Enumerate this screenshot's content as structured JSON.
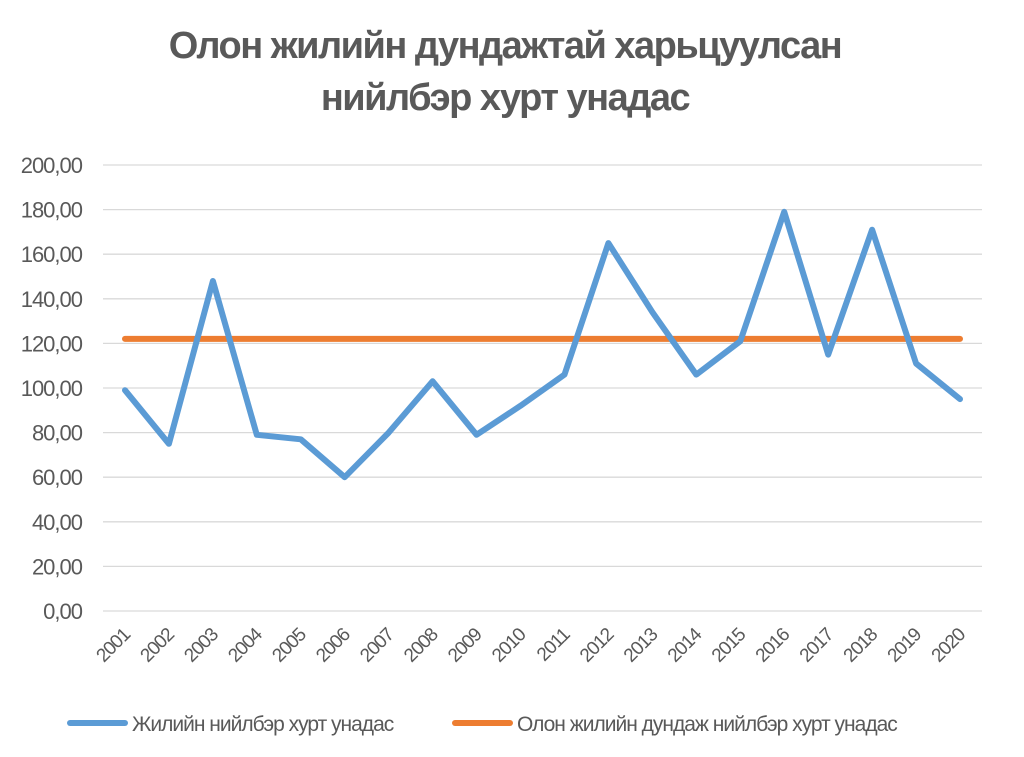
{
  "chart_data": {
    "type": "line",
    "title": "Олон жилийн дундажтай харьцуулсан нийлбэр хурт унадас",
    "title_lines": [
      "Олон жилийн дундажтай харьцуулсан",
      "нийлбэр хурт унадас"
    ],
    "xlabel": "",
    "ylabel": "",
    "ylim": [
      0,
      200
    ],
    "y_ticks": [
      "0,00",
      "20,00",
      "40,00",
      "60,00",
      "80,00",
      "100,00",
      "120,00",
      "140,00",
      "160,00",
      "180,00",
      "200,00"
    ],
    "categories": [
      "2001",
      "2002",
      "2003",
      "2004",
      "2005",
      "2006",
      "2007",
      "2008",
      "2009",
      "2010",
      "2011",
      "2012",
      "2013",
      "2014",
      "2015",
      "2016",
      "2017",
      "2018",
      "2019",
      "2020"
    ],
    "series": [
      {
        "name": "Жилийн нийлбэр хурт унадас",
        "color": "#5b9bd5",
        "values": [
          99,
          75,
          148,
          79,
          77,
          60,
          80,
          103,
          79,
          92,
          106,
          165,
          134,
          106,
          121,
          179,
          115,
          171,
          111,
          95
        ]
      },
      {
        "name": "Олон жилийн дундаж нийлбэр хурт унадас",
        "color": "#ed7d31",
        "values": [
          122,
          122,
          122,
          122,
          122,
          122,
          122,
          122,
          122,
          122,
          122,
          122,
          122,
          122,
          122,
          122,
          122,
          122,
          122,
          122
        ]
      }
    ],
    "grid": true,
    "legend_position": "bottom"
  }
}
